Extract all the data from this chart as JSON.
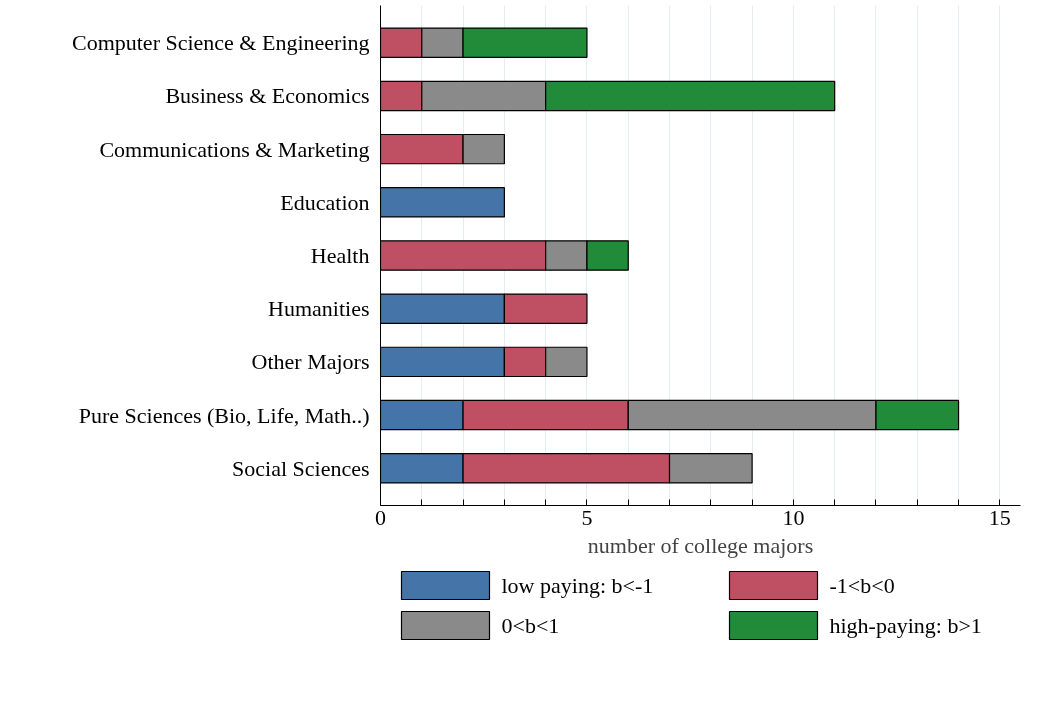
{
  "chart_data": {
    "type": "bar",
    "orientation": "horizontal",
    "stacked": true,
    "xlabel": "number of college majors",
    "categories": [
      "Computer Science & Engineering",
      "Business & Economics",
      "Communications & Marketing",
      "Education",
      "Health",
      "Humanities",
      "Other Majors",
      "Pure Sciences (Bio, Life, Math..)",
      "Social Sciences"
    ],
    "series": [
      {
        "name": "low paying: b<-1",
        "color": "#4575a8",
        "values": [
          0,
          0,
          0,
          3,
          0,
          3,
          3,
          2,
          2
        ]
      },
      {
        "name": "-1<b<0",
        "color": "#bf5064",
        "values": [
          1,
          1,
          2,
          0,
          4,
          2,
          1,
          4,
          5
        ]
      },
      {
        "name": "0<b<1",
        "color": "#8a8a8a",
        "values": [
          1,
          3,
          1,
          0,
          1,
          0,
          1,
          6,
          2
        ]
      },
      {
        "name": "high-paying: b>1",
        "color": "#228b3a",
        "values": [
          3,
          7,
          0,
          0,
          1,
          0,
          0,
          2,
          0
        ]
      }
    ],
    "xlim": [
      0,
      15.5
    ],
    "xticks": [
      0,
      {
        "value": 1,
        "label": null
      },
      {
        "value": 2,
        "label": null
      },
      {
        "value": 3,
        "label": null
      },
      {
        "value": 4,
        "label": null
      },
      5,
      {
        "value": 6,
        "label": null
      },
      {
        "value": 7,
        "label": null
      },
      {
        "value": 8,
        "label": null
      },
      {
        "value": 9,
        "label": null
      },
      10,
      {
        "value": 11,
        "label": null
      },
      {
        "value": 12,
        "label": null
      },
      {
        "value": 13,
        "label": null
      },
      {
        "value": 14,
        "label": null
      },
      15
    ],
    "grid": "x",
    "legend": "bottom"
  }
}
